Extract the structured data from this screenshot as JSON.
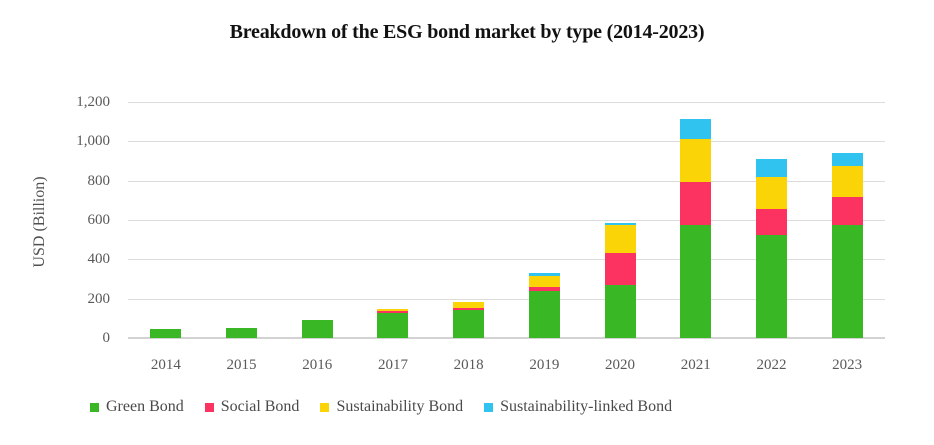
{
  "title": "Breakdown of the ESG bond market by type (2014-2023)",
  "y_axis": {
    "label": "USD (Billion)",
    "ticks": [
      "1,200",
      "1,000",
      "800",
      "600",
      "400",
      "200",
      "0"
    ]
  },
  "chart_data": {
    "type": "bar",
    "stacked": true,
    "title": "Breakdown of the ESG bond market by type (2014-2023)",
    "xlabel": "",
    "ylabel": "USD (Billion)",
    "ylim": [
      0,
      1200
    ],
    "ytick_step": 200,
    "grid": true,
    "legend_position": "bottom",
    "categories": [
      "2014",
      "2015",
      "2016",
      "2017",
      "2018",
      "2019",
      "2020",
      "2021",
      "2022",
      "2023"
    ],
    "series": [
      {
        "name": "Green Bond",
        "color": "#3ab724",
        "values": [
          45,
          50,
          90,
          125,
          140,
          240,
          270,
          575,
          525,
          575
        ]
      },
      {
        "name": "Social Bond",
        "color": "#fc3360",
        "values": [
          0,
          0,
          0,
          12,
          15,
          20,
          160,
          220,
          130,
          140
        ]
      },
      {
        "name": "Sustainability Bond",
        "color": "#fad406",
        "values": [
          0,
          0,
          0,
          12,
          30,
          55,
          145,
          215,
          165,
          160
        ]
      },
      {
        "name": "Sustainability-linked Bond",
        "color": "#30c3f0",
        "values": [
          0,
          0,
          0,
          0,
          0,
          15,
          12,
          105,
          90,
          65
        ]
      }
    ]
  },
  "colors": {
    "gridline": "#dcdcdc",
    "baseline": "#d2d2d2",
    "axis_text": "#595959",
    "legend_text": "#4a4a4a",
    "title_text": "#111111"
  }
}
